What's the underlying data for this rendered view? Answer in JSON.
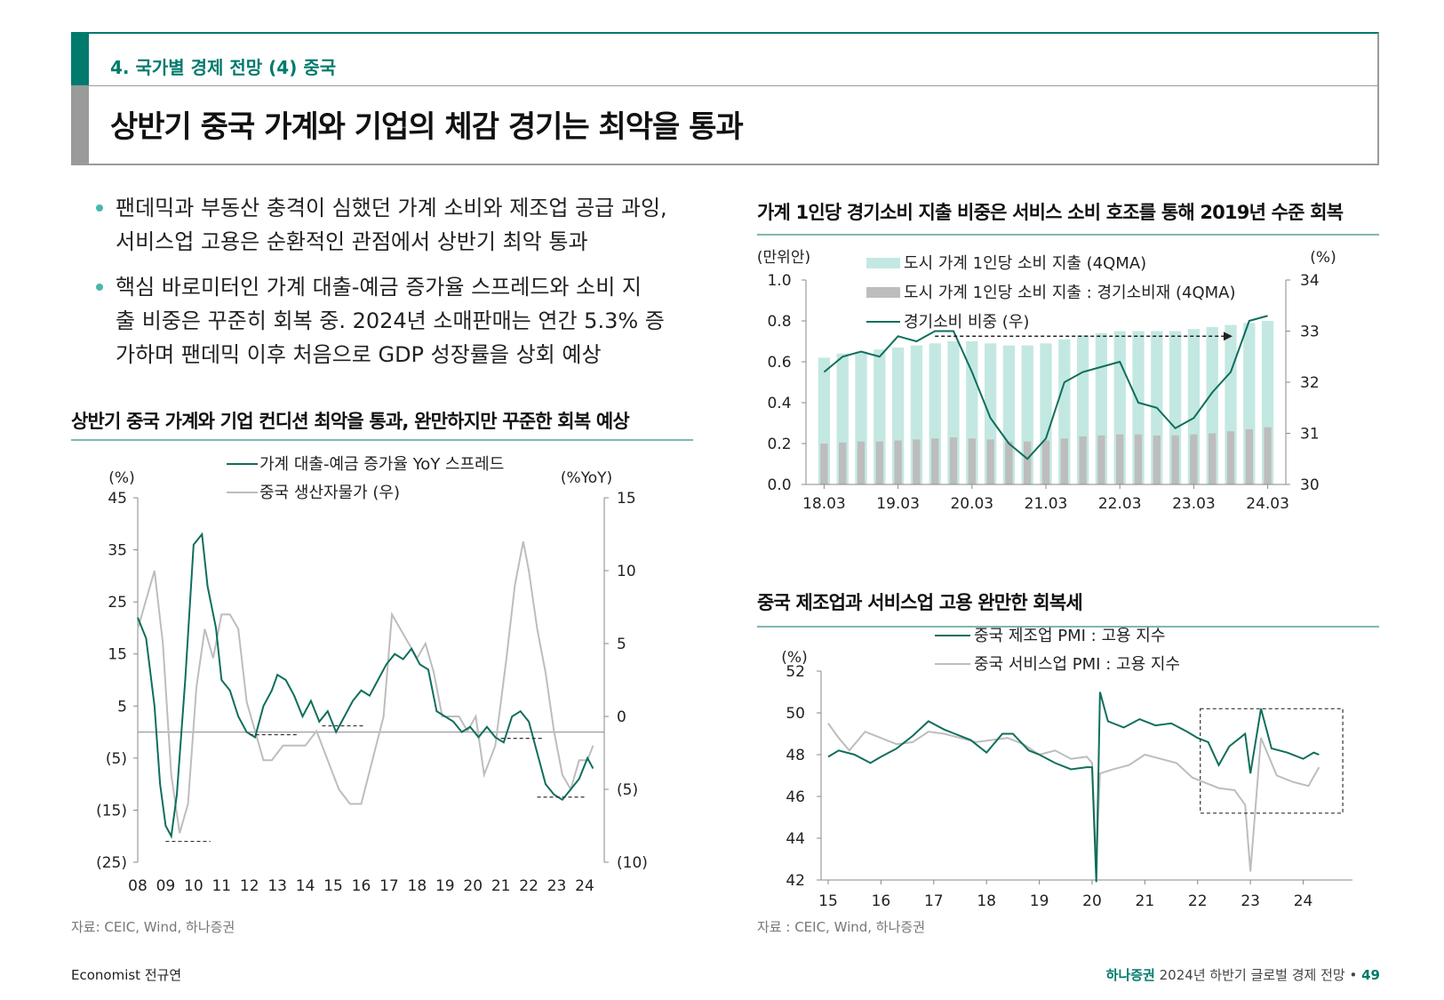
{
  "header": {
    "section": "4. 국가별 경제 전망 (4) 중국",
    "title": "상반기 중국 가계와 기업의 체감 경기는 최악을 통과"
  },
  "bullets": [
    {
      "line1": "팬데믹과 부동산 충격이 심했던 가계 소비와 제조업 공급 과잉,",
      "line2": "서비스업 고용은 순환적인 관점에서 상반기 최악 통과"
    },
    {
      "line1": "핵심 바로미터인 가계 대출-예금 증가율 스프레드와 소비 지",
      "line2": "출 비중은 꾸준히 회복 중. 2024년 소매판매는 연간 5.3% 증",
      "line3": "가하며 팬데믹 이후 처음으로 GDP 성장률을 상회 예상"
    }
  ],
  "colors": {
    "teal": "#0f6e5c",
    "gray": "#bdbdbd",
    "lightteal": "#c3e8e2",
    "accent": "#007a6c"
  },
  "chart_data": [
    {
      "type": "line",
      "title": "상반기 중국 가계와 기업 컨디션 최악을 통과, 완만하지만 꾸준한 회복 예상",
      "ylabel_left": "(%)",
      "ylabel_right": "(%YoY)",
      "y_left_ticks": [
        "45",
        "35",
        "25",
        "15",
        "5",
        "(5)",
        "(15)",
        "(25)"
      ],
      "y_right_ticks": [
        "15",
        "10",
        "5",
        "0",
        "(5)",
        "(10)"
      ],
      "ylim_left": [
        -25,
        45
      ],
      "ylim_right": [
        -10,
        15
      ],
      "x_ticks": [
        "08",
        "09",
        "10",
        "11",
        "12",
        "13",
        "14",
        "15",
        "16",
        "17",
        "18",
        "19",
        "20",
        "21",
        "22",
        "23",
        "24"
      ],
      "xlim": [
        2008,
        2024.7
      ],
      "series": [
        {
          "name": "가계 대출-예금 증가율 YoY 스프레드",
          "axis": "left",
          "x": [
            2008.0,
            2008.3,
            2008.6,
            2008.8,
            2009.0,
            2009.2,
            2009.4,
            2009.7,
            2010.0,
            2010.3,
            2010.5,
            2010.8,
            2011.0,
            2011.3,
            2011.6,
            2011.9,
            2012.2,
            2012.5,
            2012.8,
            2013.0,
            2013.3,
            2013.6,
            2013.9,
            2014.2,
            2014.5,
            2014.8,
            2015.1,
            2015.4,
            2015.7,
            2016.0,
            2016.3,
            2016.6,
            2016.9,
            2017.2,
            2017.5,
            2017.8,
            2018.1,
            2018.4,
            2018.7,
            2019.0,
            2019.3,
            2019.6,
            2019.9,
            2020.2,
            2020.5,
            2020.8,
            2021.1,
            2021.4,
            2021.7,
            2022.0,
            2022.3,
            2022.6,
            2022.9,
            2023.2,
            2023.5,
            2023.8,
            2024.1,
            2024.3
          ],
          "values": [
            22,
            18,
            5,
            -10,
            -18,
            -20,
            -12,
            10,
            36,
            38,
            28,
            20,
            10,
            8,
            3,
            0,
            -1,
            5,
            8,
            11,
            10,
            7,
            3,
            6,
            2,
            4,
            0,
            3,
            6,
            8,
            7,
            10,
            13,
            15,
            14,
            16,
            13,
            12,
            4,
            3,
            2,
            0,
            1,
            -1,
            1,
            -1,
            -2,
            3,
            4,
            2,
            -4,
            -10,
            -12,
            -13,
            -11,
            -9,
            -5,
            -7
          ]
        },
        {
          "name": "중국 생산자물가 (우)",
          "axis": "right",
          "x": [
            2008.0,
            2008.3,
            2008.6,
            2008.9,
            2009.2,
            2009.5,
            2009.8,
            2010.1,
            2010.4,
            2010.7,
            2011.0,
            2011.3,
            2011.6,
            2011.9,
            2012.2,
            2012.5,
            2012.8,
            2013.2,
            2013.6,
            2014.0,
            2014.4,
            2014.8,
            2015.2,
            2015.6,
            2016.0,
            2016.4,
            2016.8,
            2017.1,
            2017.4,
            2017.7,
            2018.0,
            2018.3,
            2018.6,
            2018.9,
            2019.2,
            2019.5,
            2019.8,
            2020.1,
            2020.4,
            2020.8,
            2021.2,
            2021.5,
            2021.8,
            2022.0,
            2022.3,
            2022.6,
            2022.9,
            2023.2,
            2023.5,
            2023.8,
            2024.1,
            2024.3
          ],
          "values": [
            6,
            8,
            10,
            5,
            -4,
            -8,
            -6,
            2,
            6,
            4,
            7,
            7,
            6,
            1,
            -1,
            -3,
            -3,
            -2,
            -2,
            -2,
            -1,
            -3,
            -5,
            -6,
            -6,
            -3,
            0,
            7,
            6,
            5,
            4,
            5,
            3,
            0,
            0,
            0,
            -1,
            0,
            -4,
            -2,
            4,
            9,
            12,
            10,
            6,
            3,
            -1,
            -4,
            -5,
            -3,
            -3,
            -2
          ]
        }
      ],
      "annotations": [
        "dashed troughs marked near 09, 12, 15, 21, 23"
      ]
    },
    {
      "type": "bar",
      "title": "가계 1인당 경기소비 지출 비중은 서비스 소비 호조를 통해 2019년 수준 회복",
      "ylabel_left": "(만위안)",
      "ylabel_right": "(%)",
      "y_left_ticks": [
        "1.0",
        "0.8",
        "0.6",
        "0.4",
        "0.2",
        "0.0"
      ],
      "y_right_ticks": [
        "34",
        "33",
        "32",
        "31",
        "30"
      ],
      "ylim_left": [
        0,
        1.0
      ],
      "ylim_right": [
        30,
        34
      ],
      "x_ticks": [
        "18.03",
        "19.03",
        "20.03",
        "21.03",
        "22.03",
        "23.03",
        "24.03"
      ],
      "categories": [
        "18Q1",
        "18Q2",
        "18Q3",
        "18Q4",
        "19Q1",
        "19Q2",
        "19Q3",
        "19Q4",
        "20Q1",
        "20Q2",
        "20Q3",
        "20Q4",
        "21Q1",
        "21Q2",
        "21Q3",
        "21Q4",
        "22Q1",
        "22Q2",
        "22Q3",
        "22Q4",
        "23Q1",
        "23Q2",
        "23Q3",
        "23Q4",
        "24Q1"
      ],
      "series": [
        {
          "name": "도시 가계 1인당 소비 지출 (4QMA)",
          "axis": "left",
          "kind": "bar",
          "values": [
            0.62,
            0.64,
            0.65,
            0.66,
            0.67,
            0.68,
            0.69,
            0.7,
            0.7,
            0.69,
            0.68,
            0.68,
            0.69,
            0.71,
            0.73,
            0.74,
            0.75,
            0.75,
            0.75,
            0.75,
            0.76,
            0.77,
            0.78,
            0.79,
            0.8
          ]
        },
        {
          "name": "도시 가계 1인당 소비 지출 : 경기소비재 (4QMA)",
          "axis": "left",
          "kind": "bar",
          "values": [
            0.2,
            0.205,
            0.21,
            0.21,
            0.215,
            0.22,
            0.225,
            0.23,
            0.225,
            0.22,
            0.21,
            0.21,
            0.215,
            0.225,
            0.235,
            0.24,
            0.245,
            0.245,
            0.24,
            0.24,
            0.245,
            0.25,
            0.26,
            0.27,
            0.28
          ]
        },
        {
          "name": "경기소비 비중 (우)",
          "axis": "right",
          "kind": "line",
          "values": [
            32.2,
            32.5,
            32.6,
            32.5,
            32.9,
            32.8,
            33.0,
            33.0,
            32.2,
            31.3,
            30.8,
            30.5,
            30.9,
            32.0,
            32.2,
            32.3,
            32.4,
            31.6,
            31.5,
            31.1,
            31.3,
            31.8,
            32.2,
            33.2,
            33.3
          ]
        }
      ],
      "annotations": [
        "arrow from 19.03 level to 24.03"
      ]
    },
    {
      "type": "line",
      "title": "중국 제조업과 서비스업 고용 완만한 회복세",
      "ylabel_left": "(%)",
      "y_left_ticks": [
        "52",
        "50",
        "48",
        "46",
        "44",
        "42"
      ],
      "ylim_left": [
        42,
        52
      ],
      "x_ticks": [
        "15",
        "16",
        "17",
        "18",
        "19",
        "20",
        "21",
        "22",
        "23",
        "24"
      ],
      "xlim": [
        2015,
        2024.9
      ],
      "series": [
        {
          "name": "중국 제조업 PMI : 고용 지수",
          "axis": "left",
          "x": [
            2015.0,
            2015.2,
            2015.5,
            2015.8,
            2016.0,
            2016.3,
            2016.6,
            2016.9,
            2017.2,
            2017.4,
            2017.7,
            2018.0,
            2018.3,
            2018.5,
            2018.8,
            2019.0,
            2019.3,
            2019.6,
            2019.9,
            2020.0,
            2020.08,
            2020.15,
            2020.3,
            2020.6,
            2020.9,
            2021.2,
            2021.5,
            2021.8,
            2022.0,
            2022.2,
            2022.4,
            2022.6,
            2022.9,
            2023.0,
            2023.2,
            2023.4,
            2023.7,
            2024.0,
            2024.2,
            2024.3
          ],
          "values": [
            47.9,
            48.2,
            48.0,
            47.6,
            47.9,
            48.3,
            48.9,
            49.6,
            49.2,
            49.0,
            48.7,
            48.1,
            49.0,
            49.0,
            48.2,
            48.0,
            47.6,
            47.3,
            47.4,
            47.4,
            41.9,
            51.0,
            49.6,
            49.3,
            49.7,
            49.4,
            49.5,
            49.1,
            48.8,
            48.6,
            47.5,
            48.4,
            49.0,
            47.1,
            50.2,
            48.3,
            48.1,
            47.8,
            48.1,
            48.0
          ]
        },
        {
          "name": "중국 서비스업 PMI : 고용 지수",
          "axis": "left",
          "x": [
            2015.0,
            2015.2,
            2015.4,
            2015.7,
            2016.0,
            2016.3,
            2016.6,
            2016.9,
            2017.2,
            2017.5,
            2017.8,
            2018.1,
            2018.4,
            2018.7,
            2019.0,
            2019.3,
            2019.6,
            2019.9,
            2020.0,
            2020.08,
            2020.15,
            2020.4,
            2020.7,
            2021.0,
            2021.3,
            2021.6,
            2021.9,
            2022.1,
            2022.4,
            2022.7,
            2022.9,
            2023.0,
            2023.2,
            2023.5,
            2023.8,
            2024.1,
            2024.3
          ],
          "values": [
            49.5,
            48.8,
            48.2,
            49.1,
            48.8,
            48.5,
            48.6,
            49.1,
            49.0,
            48.8,
            48.6,
            48.7,
            48.8,
            48.5,
            48.0,
            48.2,
            47.8,
            47.9,
            47.6,
            42.8,
            47.1,
            47.3,
            47.5,
            48.0,
            47.8,
            47.6,
            46.9,
            46.7,
            46.4,
            46.3,
            45.6,
            42.4,
            48.8,
            47.0,
            46.7,
            46.5,
            47.4
          ]
        }
      ],
      "annotations": [
        "dashed box around 22-24"
      ]
    }
  ],
  "charts": {
    "c1": {
      "title": "상반기 중국 가계와 기업 컨디션 최악을 통과, 완만하지만 꾸준한 회복 예상",
      "unit_l": "(%)",
      "unit_r": "(%YoY)",
      "legend1": "가계 대출-예금 증가율 YoY 스프레드",
      "legend2": "중국 생산자물가 (우)",
      "source": "자료: CEIC, Wind, 하나증권"
    },
    "c2": {
      "title": "가계 1인당 경기소비 지출 비중은 서비스 소비 호조를 통해 2019년 수준 회복",
      "unit_l": "(만위안)",
      "unit_r": "(%)",
      "legend1": "도시 가계 1인당 소비 지출 (4QMA)",
      "legend2": "도시 가계 1인당 소비 지출 : 경기소비재 (4QMA)",
      "legend3": "경기소비 비중 (우)"
    },
    "c3": {
      "title": "중국 제조업과 서비스업 고용 완만한 회복세",
      "unit_l": "(%)",
      "legend1": "중국 제조업 PMI : 고용 지수",
      "legend2": "중국 서비스업 PMI : 고용 지수",
      "source": "자료 : CEIC, Wind, 하나증권"
    }
  },
  "footer": {
    "author": "Economist 전규연",
    "brand": "하나증권",
    "report": "2024년 하반기 글로벌 경제 전망",
    "sep": "•",
    "page": "49"
  }
}
